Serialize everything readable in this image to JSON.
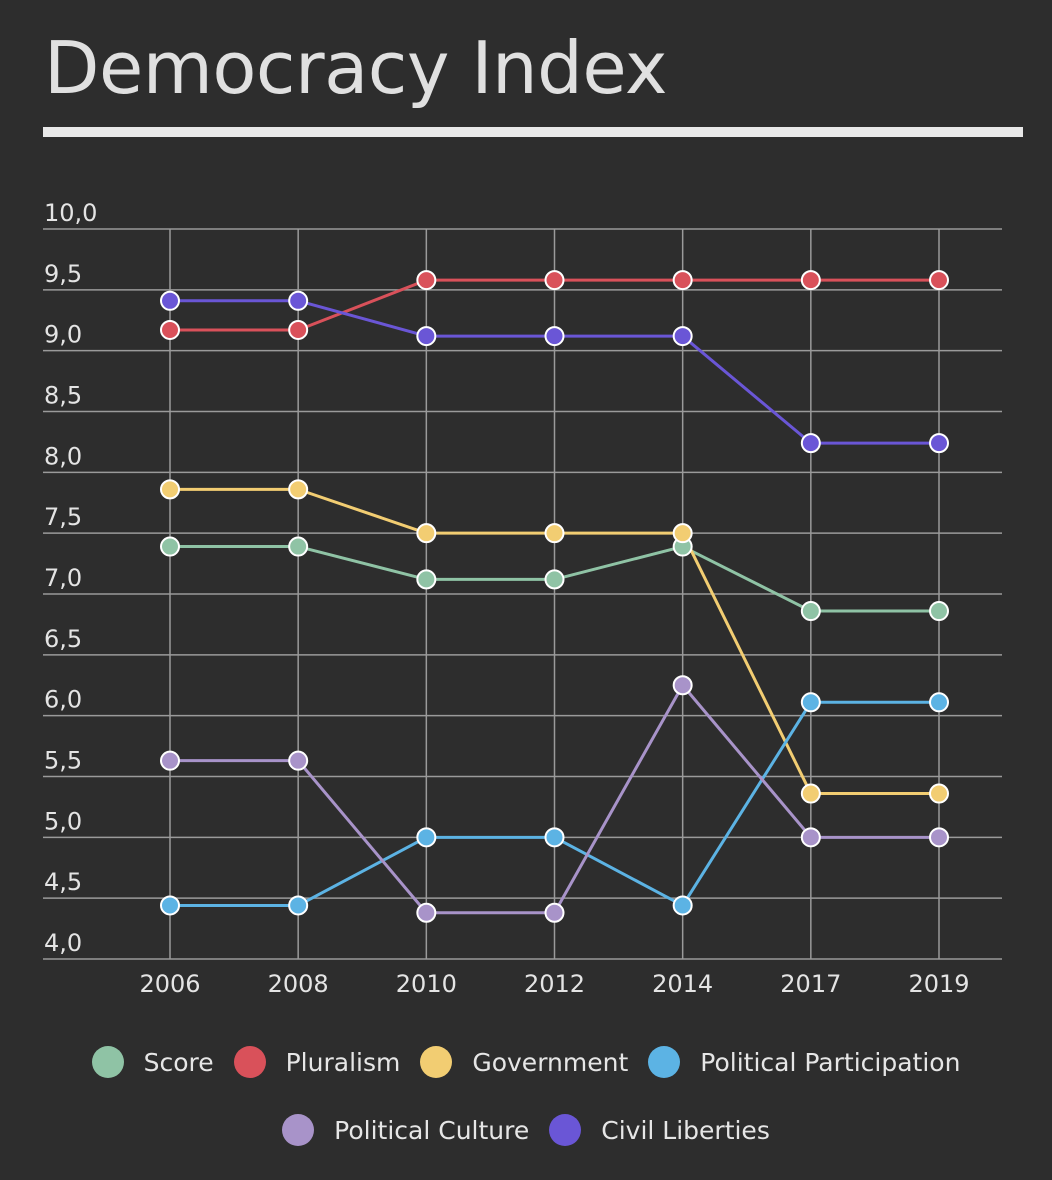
{
  "header": {
    "title": "Democracy Index"
  },
  "chart_data": {
    "type": "line",
    "title": "Democracy Index",
    "xlabel": "",
    "ylabel": "",
    "x": [
      "2006",
      "2008",
      "2010",
      "2012",
      "2014",
      "2017",
      "2019"
    ],
    "ylim": [
      4.0,
      10.0
    ],
    "yticks": [
      4.0,
      4.5,
      5.0,
      5.5,
      6.0,
      6.5,
      7.0,
      7.5,
      8.0,
      8.5,
      9.0,
      9.5,
      10.0
    ],
    "ytick_labels": [
      "4,0",
      "4,5",
      "5,0",
      "5,5",
      "6,0",
      "6,5",
      "7,0",
      "7,5",
      "8,0",
      "8,5",
      "9,0",
      "9,5",
      "10,0"
    ],
    "grid": true,
    "legend_placement": "bottom",
    "series": [
      {
        "name": "Score",
        "color": "#8fc3a5",
        "values": [
          7.39,
          7.39,
          7.12,
          7.12,
          7.39,
          6.86,
          6.86
        ]
      },
      {
        "name": "Pluralism",
        "color": "#d9515a",
        "values": [
          9.17,
          9.17,
          9.58,
          9.58,
          9.58,
          9.58,
          9.58
        ]
      },
      {
        "name": "Government",
        "color": "#f2cd72",
        "values": [
          7.86,
          7.86,
          7.5,
          7.5,
          7.5,
          5.36,
          5.36
        ]
      },
      {
        "name": "Political Participation",
        "color": "#5cb3e4",
        "values": [
          4.44,
          4.44,
          5.0,
          5.0,
          4.44,
          6.11,
          6.11
        ]
      },
      {
        "name": "Political Culture",
        "color": "#a893c9",
        "values": [
          5.63,
          5.63,
          4.38,
          4.38,
          6.25,
          5.0,
          5.0
        ]
      },
      {
        "name": "Civil Liberties",
        "color": "#6a56d6",
        "values": [
          9.41,
          9.41,
          9.12,
          9.12,
          9.12,
          8.24,
          8.24
        ]
      }
    ]
  },
  "legend": {
    "rows": [
      [
        {
          "label": "Score",
          "color": "#8fc3a5"
        },
        {
          "label": "Pluralism",
          "color": "#d9515a"
        },
        {
          "label": "Government",
          "color": "#f2cd72"
        },
        {
          "label": "Political Participation",
          "color": "#5cb3e4"
        }
      ],
      [
        {
          "label": "Political Culture",
          "color": "#a893c9"
        },
        {
          "label": "Civil Liberties",
          "color": "#6a56d6"
        }
      ]
    ]
  }
}
